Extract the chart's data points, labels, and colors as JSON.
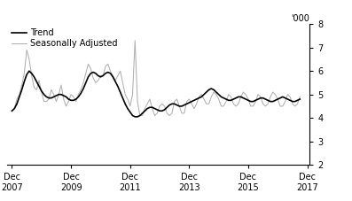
{
  "ylabel": "'000",
  "ylim": [
    2,
    8
  ],
  "yticks": [
    2,
    3,
    4,
    5,
    6,
    7,
    8
  ],
  "xlim_start": 2007.75,
  "xlim_end": 2018.0,
  "xtick_years": [
    2007,
    2009,
    2011,
    2013,
    2015,
    2017
  ],
  "legend_entries": [
    "Trend",
    "Seasonally Adjusted"
  ],
  "trend_color": "#000000",
  "seasonal_color": "#b0b0b0",
  "background_color": "#ffffff",
  "trend_lw": 1.2,
  "seasonal_lw": 0.75,
  "trend_data": [
    4.3,
    4.4,
    4.6,
    4.9,
    5.2,
    5.55,
    5.85,
    6.0,
    5.9,
    5.75,
    5.55,
    5.35,
    5.15,
    5.0,
    4.9,
    4.85,
    4.85,
    4.9,
    4.95,
    5.0,
    5.0,
    4.95,
    4.9,
    4.8,
    4.75,
    4.75,
    4.8,
    4.9,
    5.05,
    5.25,
    5.5,
    5.75,
    5.9,
    5.95,
    5.9,
    5.8,
    5.75,
    5.8,
    5.9,
    5.95,
    5.9,
    5.75,
    5.55,
    5.35,
    5.1,
    4.85,
    4.6,
    4.4,
    4.25,
    4.1,
    4.05,
    4.05,
    4.1,
    4.2,
    4.3,
    4.4,
    4.45,
    4.45,
    4.4,
    4.35,
    4.3,
    4.3,
    4.35,
    4.45,
    4.55,
    4.6,
    4.6,
    4.55,
    4.5,
    4.5,
    4.55,
    4.6,
    4.65,
    4.7,
    4.75,
    4.8,
    4.85,
    4.9,
    5.0,
    5.1,
    5.2,
    5.25,
    5.2,
    5.1,
    5.0,
    4.9,
    4.85,
    4.8,
    4.75,
    4.75,
    4.8,
    4.85,
    4.9,
    4.9,
    4.85,
    4.8,
    4.75,
    4.7,
    4.7,
    4.75,
    4.8,
    4.85,
    4.85,
    4.8,
    4.75,
    4.7,
    4.7,
    4.75,
    4.8,
    4.85,
    4.9,
    4.85,
    4.8,
    4.75,
    4.7,
    4.7,
    4.75,
    4.8
  ],
  "seasonal_data": [
    4.3,
    4.4,
    4.8,
    5.0,
    5.4,
    5.9,
    6.9,
    6.5,
    5.8,
    5.3,
    5.2,
    5.6,
    5.1,
    4.7,
    4.7,
    4.8,
    5.2,
    5.0,
    4.7,
    5.0,
    5.4,
    4.8,
    4.5,
    4.7,
    5.0,
    4.9,
    4.7,
    5.0,
    5.2,
    5.5,
    5.9,
    6.3,
    6.1,
    5.7,
    5.5,
    5.6,
    5.8,
    5.8,
    6.2,
    6.3,
    6.0,
    5.8,
    5.6,
    5.8,
    6.0,
    5.5,
    5.0,
    4.8,
    4.5,
    5.0,
    7.3,
    4.7,
    4.1,
    4.1,
    4.4,
    4.6,
    4.8,
    4.4,
    4.1,
    4.2,
    4.5,
    4.6,
    4.5,
    4.2,
    4.1,
    4.2,
    4.7,
    4.8,
    4.5,
    4.2,
    4.2,
    4.7,
    4.8,
    4.6,
    4.4,
    4.6,
    4.9,
    5.0,
    4.8,
    4.6,
    4.6,
    4.9,
    5.1,
    5.0,
    4.8,
    4.5,
    4.5,
    4.7,
    5.0,
    4.9,
    4.6,
    4.5,
    4.6,
    4.9,
    5.1,
    5.0,
    4.8,
    4.5,
    4.5,
    4.7,
    5.0,
    4.9,
    4.6,
    4.5,
    4.6,
    4.9,
    5.1,
    5.0,
    4.8,
    4.5,
    4.5,
    4.7,
    5.0,
    4.9,
    4.6,
    4.5,
    4.6,
    4.9
  ]
}
